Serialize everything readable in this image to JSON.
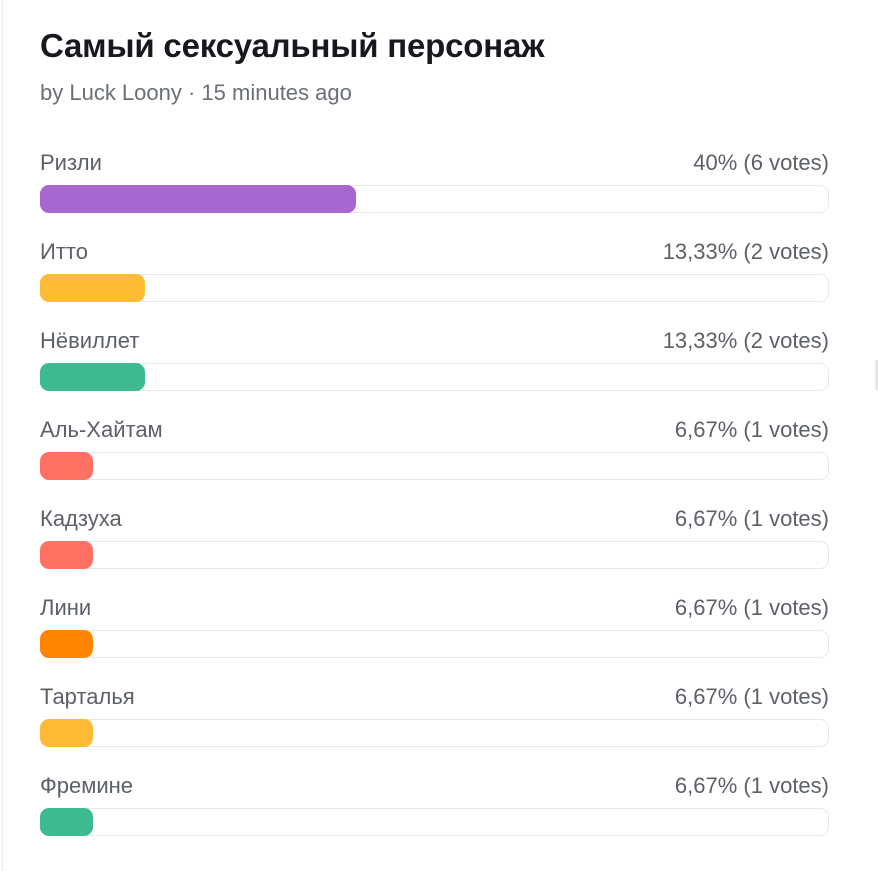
{
  "poll": {
    "title": "Самый сексуальный персонаж",
    "meta": "by Luck Loony · 15 minutes ago",
    "options": [
      {
        "label": "Ризли",
        "result": "40% (6 votes)",
        "percent": 40,
        "color": "#a866d0"
      },
      {
        "label": "Итто",
        "result": "13,33% (2 votes)",
        "percent": 13.33,
        "color": "#ffba36"
      },
      {
        "label": "Нёвиллет",
        "result": "13,33% (2 votes)",
        "percent": 13.33,
        "color": "#3dbb8f"
      },
      {
        "label": "Аль-Хайтам",
        "result": "6,67% (1 votes)",
        "percent": 6.67,
        "color": "#ff7163"
      },
      {
        "label": "Кадзуха",
        "result": "6,67% (1 votes)",
        "percent": 6.67,
        "color": "#ff7163"
      },
      {
        "label": "Лини",
        "result": "6,67% (1 votes)",
        "percent": 6.67,
        "color": "#ff8500"
      },
      {
        "label": "Тарталья",
        "result": "6,67% (1 votes)",
        "percent": 6.67,
        "color": "#ffba36"
      },
      {
        "label": "Фремине",
        "result": "6,67% (1 votes)",
        "percent": 6.67,
        "color": "#3dbb8f"
      }
    ]
  }
}
